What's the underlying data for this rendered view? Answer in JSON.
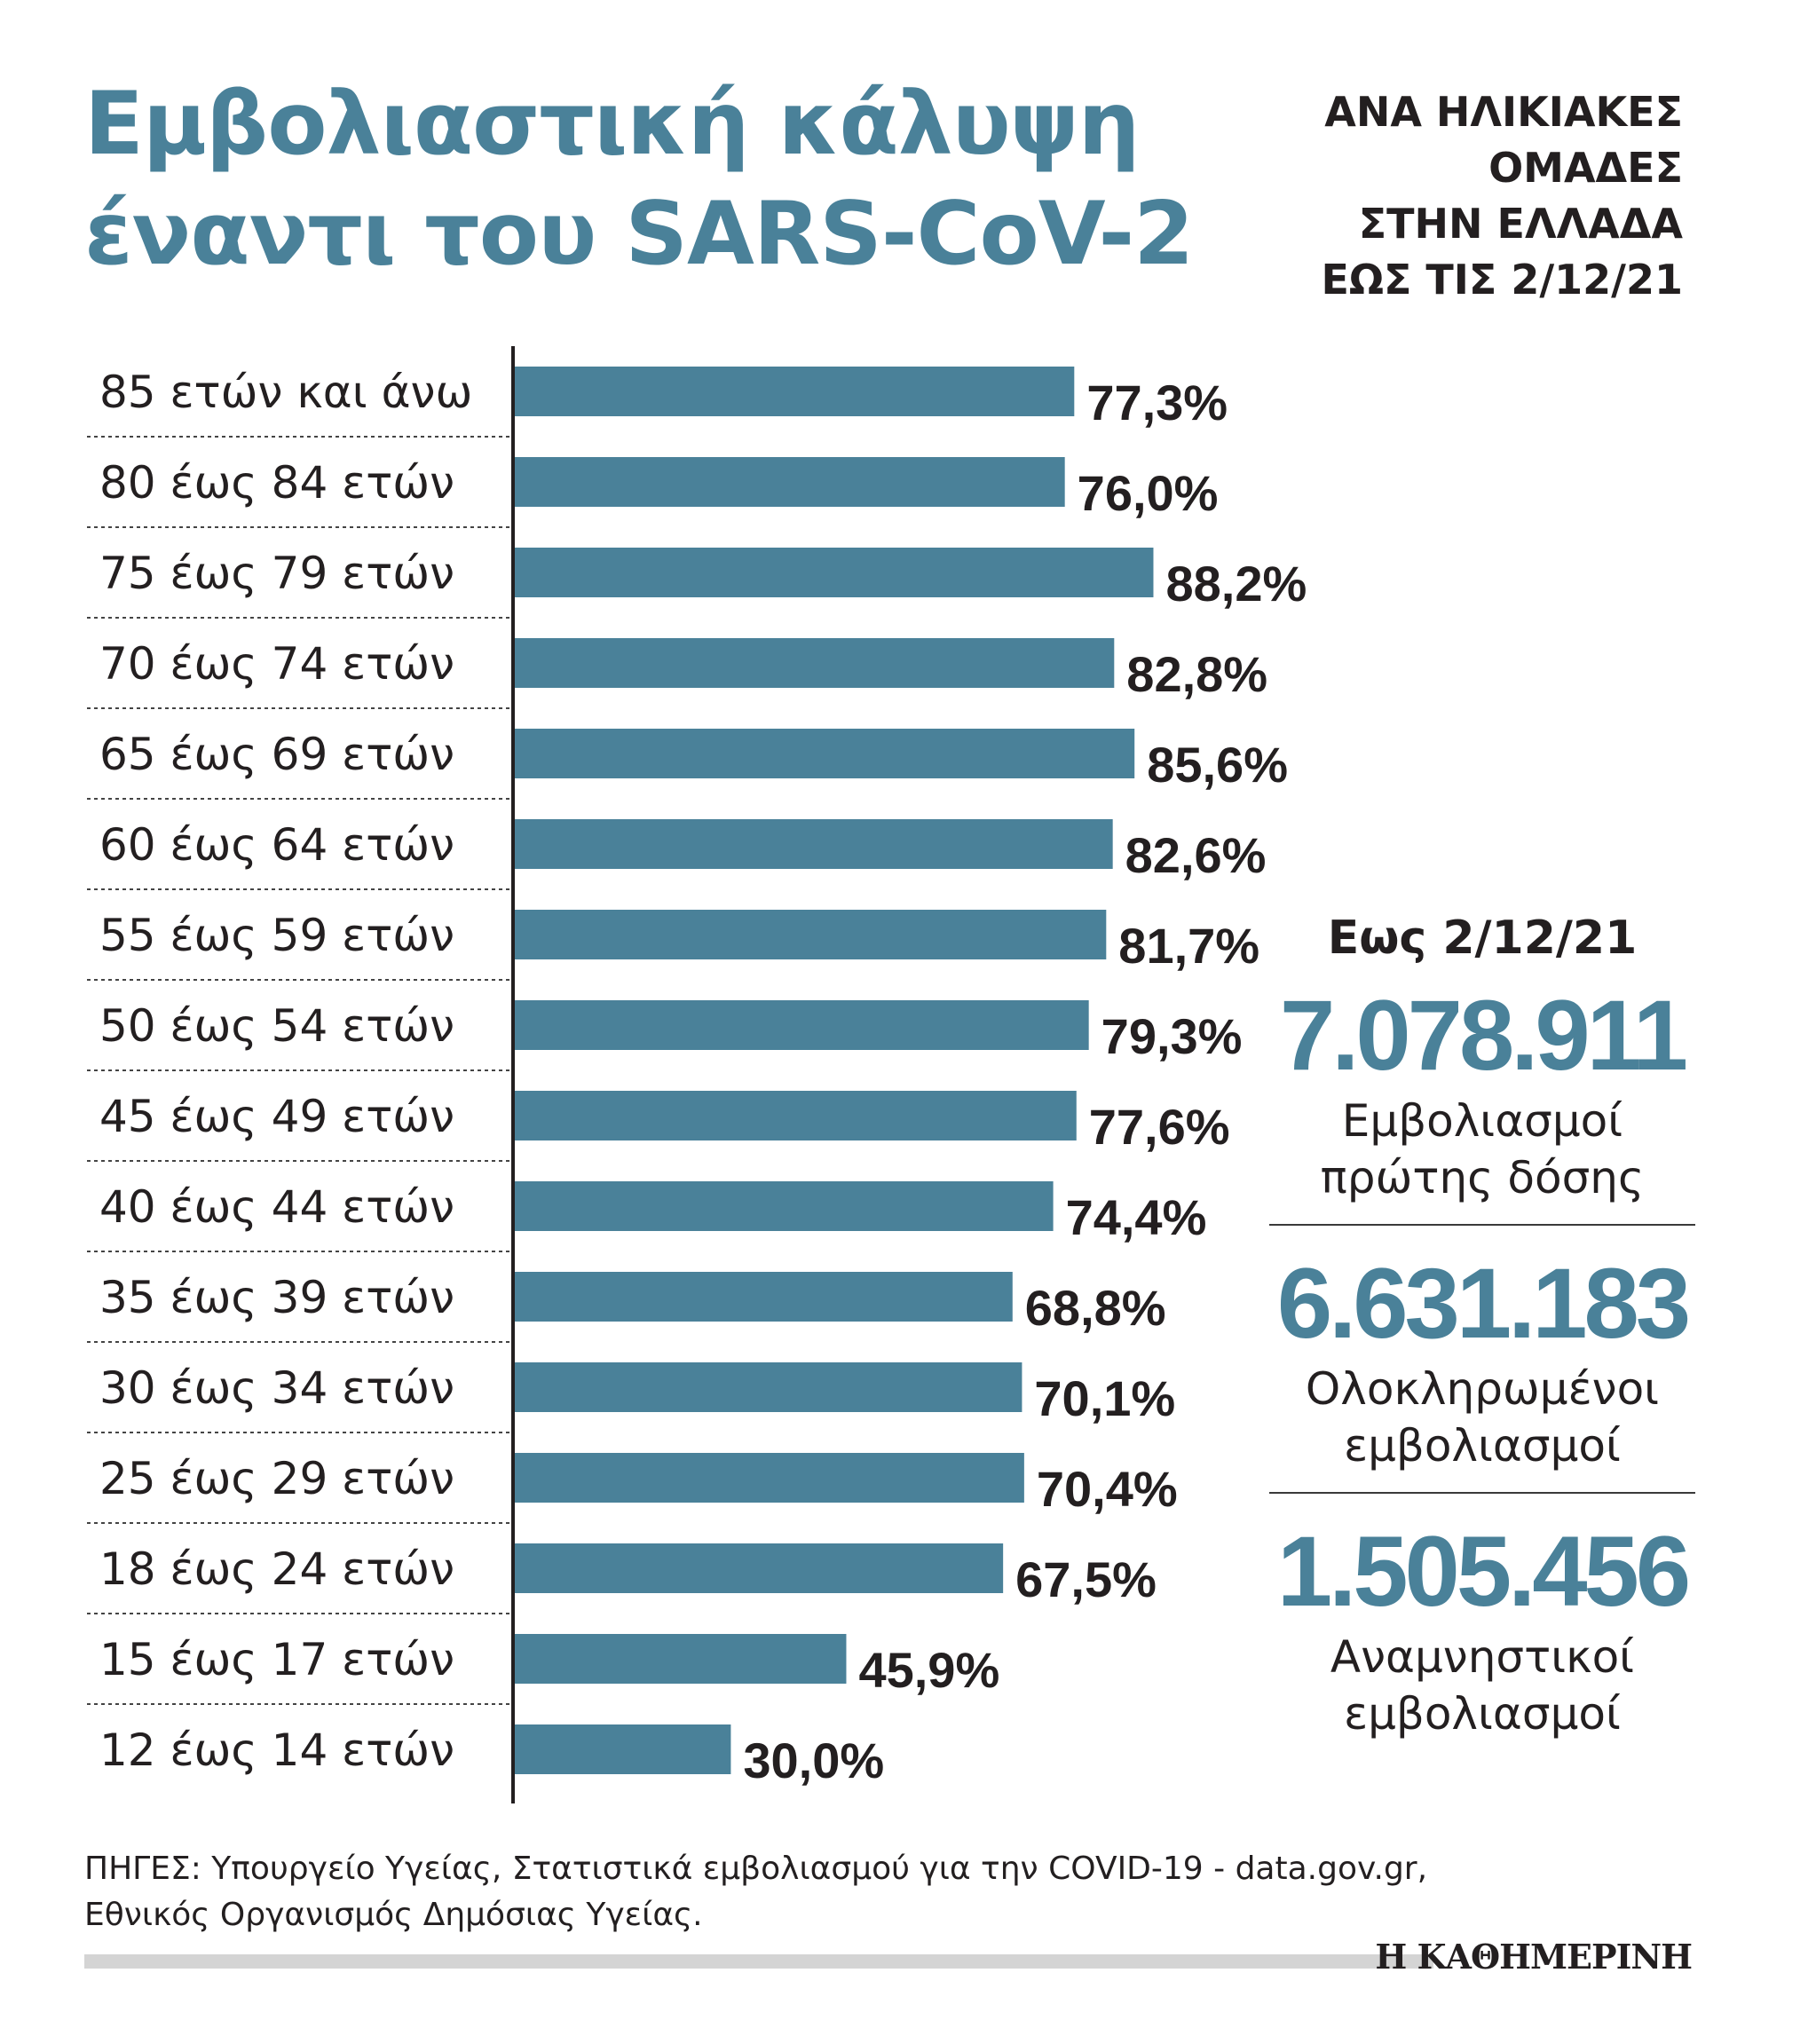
{
  "title": {
    "line1": "Εμβολιαστική κάλυψη",
    "line2": "έναντι του SARS-CoV-2"
  },
  "subtitle": {
    "line1": "ΑΝΑ ΗΛΙΚΙΑΚΕΣ",
    "line2": "ΟΜΑΔΕΣ",
    "line3": "ΣΤΗΝ ΕΛΛΑΔΑ",
    "line4": "ΕΩΣ ΤΙΣ 2/12/21"
  },
  "chart_data": {
    "type": "bar",
    "orientation": "horizontal",
    "title": "Εμβολιαστική κάλυψη έναντι του SARS-CoV-2",
    "xlabel": "",
    "ylabel": "",
    "xlim": [
      0,
      100
    ],
    "grid": false,
    "categories": [
      "85 ετών και άνω",
      "80 έως 84 ετών",
      "75 έως 79 ετών",
      "70 έως 74 ετών",
      "65 έως 69 ετών",
      "60 έως 64 ετών",
      "55 έως 59 ετών",
      "50 έως 54 ετών",
      "45 έως 49 ετών",
      "40 έως 44 ετών",
      "35 έως 39 ετών",
      "30 έως 34 ετών",
      "25 έως 29 ετών",
      "18 έως 24 ετών",
      "15 έως 17 ετών",
      "12 έως 14 ετών"
    ],
    "values": [
      77.3,
      76.0,
      88.2,
      82.8,
      85.6,
      82.6,
      81.7,
      79.3,
      77.6,
      74.4,
      68.8,
      70.1,
      70.4,
      67.5,
      45.9,
      30.0
    ],
    "value_labels": [
      "77,3%",
      "76,0%",
      "88,2%",
      "82,8%",
      "85,6%",
      "82,6%",
      "81,7%",
      "79,3%",
      "77,6%",
      "74,4%",
      "68,8%",
      "70,1%",
      "70,4%",
      "67,5%",
      "45,9%",
      "30,0%"
    ]
  },
  "stats": {
    "date_label": "Εως 2/12/21",
    "items": [
      {
        "value": "7.078.911",
        "label_line1": "Εμβολιασμοί",
        "label_line2": "πρώτης δόσης"
      },
      {
        "value": "6.631.183",
        "label_line1": "Ολοκληρωμένοι",
        "label_line2": "εμβολιασμοί"
      },
      {
        "value": "1.505.456",
        "label_line1": "Αναμνηστικοί",
        "label_line2": "εμβολιασμοί"
      }
    ]
  },
  "sources": {
    "line1": "ΠΗΓΕΣ: Υπουργείο Υγείας, Στατιστικά εμβολιασμού για την COVID-19 - data.gov.gr,",
    "line2": "Εθνικός Οργανισμός Δημόσιας Υγείας."
  },
  "logo": "Η ΚΑΘΗΜΕΡΙΝΗ",
  "colors": {
    "bar": "#4a8199",
    "accent": "#4a8199",
    "text": "#231f20"
  }
}
